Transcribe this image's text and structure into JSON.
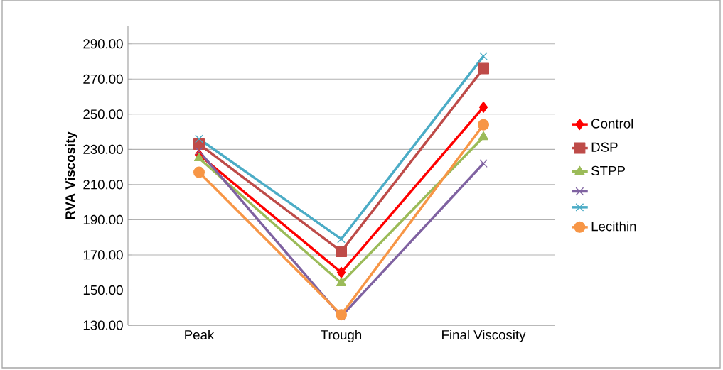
{
  "chart_data": {
    "type": "line",
    "ylabel": "RVA Viscosity",
    "categories": [
      "Peak",
      "Trough",
      "Final Viscosity"
    ],
    "series": [
      {
        "name": "Control",
        "color": "#ff0000",
        "marker": "diamond",
        "values": [
          227,
          160,
          254
        ]
      },
      {
        "name": "DSP",
        "color": "#be4b48",
        "marker": "square",
        "values": [
          233,
          172,
          276
        ]
      },
      {
        "name": "STPP",
        "color": "#9bbb59",
        "marker": "triangle",
        "values": [
          225,
          154,
          237
        ]
      },
      {
        "color": "#7f62a1",
        "marker": "cross",
        "values": [
          229,
          135,
          222
        ]
      },
      {
        "color": "#4bacc6",
        "marker": "cross",
        "values": [
          236,
          179,
          283
        ]
      },
      {
        "name": "Lecithin",
        "color": "#f79646",
        "marker": "circle",
        "values": [
          217,
          136,
          244
        ]
      }
    ],
    "ylim": [
      130,
      300
    ],
    "yticks": [
      {
        "value": 130,
        "label": "130.00"
      },
      {
        "value": 150,
        "label": "150.00"
      },
      {
        "value": 170,
        "label": "170.00"
      },
      {
        "value": 190,
        "label": "190.00"
      },
      {
        "value": 210,
        "label": "210.00"
      },
      {
        "value": 230,
        "label": "230.00"
      },
      {
        "value": 250,
        "label": "250.00"
      },
      {
        "value": 270,
        "label": "270.00"
      },
      {
        "value": 290,
        "label": "290.00"
      }
    ],
    "grid": "y",
    "legend": "right",
    "line_style": "solid"
  }
}
